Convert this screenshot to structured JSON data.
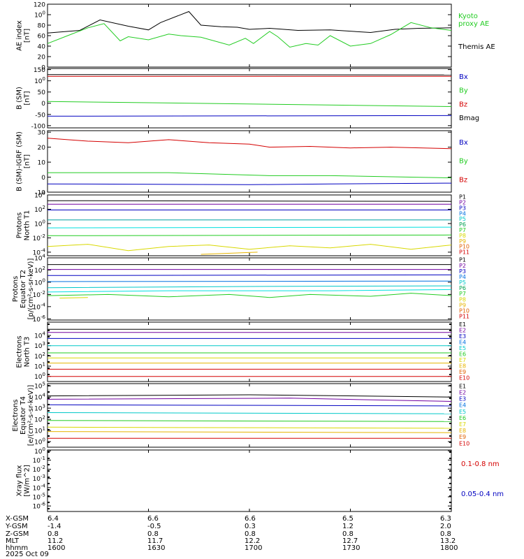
{
  "footer": {
    "rows": [
      {
        "label": "X-GSM",
        "values": [
          "6.4",
          "6.6",
          "6.6",
          "6.5",
          "6.3"
        ]
      },
      {
        "label": "Y-GSM",
        "values": [
          "-1.4",
          "-0.5",
          "0.3",
          "1.2",
          "2.0"
        ]
      },
      {
        "label": "Z-GSM",
        "values": [
          "0.8",
          "0.8",
          "0.8",
          "0.8",
          "0.8"
        ]
      },
      {
        "label": "MLT",
        "values": [
          "11.2",
          "11.7",
          "12.2",
          "12.7",
          "13.2"
        ]
      },
      {
        "label": "hhmm",
        "values": [
          "1600",
          "1630",
          "1700",
          "1730",
          "1800"
        ]
      }
    ],
    "date": "2025 Oct 09"
  },
  "colors": {
    "black": "#000000",
    "red": "#d40000",
    "green": "#22cc22",
    "blue": "#0000c0",
    "yellow": "#d8d800",
    "cyan": "#00c8c8",
    "orange": "#e6b400",
    "purple": "#7000a0"
  },
  "chart_data": [
    {
      "type": "line",
      "id": "ae",
      "ylabel": [
        "AE index",
        "[nT]"
      ],
      "ylim": [
        0,
        120
      ],
      "yticks": [
        "0",
        "20",
        "40",
        "60",
        "80",
        "100",
        "120"
      ],
      "legend": [
        {
          "text": "Kyoto",
          "color": "#22cc22"
        },
        {
          "text": "proxy AE",
          "color": "#22cc22"
        },
        {
          "text": "Themis AE",
          "color": "#000000"
        }
      ],
      "series": [
        {
          "name": "Themis AE",
          "color": "#000000",
          "t": [
            0,
            0.08,
            0.13,
            0.2,
            0.25,
            0.28,
            0.35,
            0.38,
            0.43,
            0.47,
            0.5,
            0.55,
            0.62,
            0.7,
            0.8,
            0.86,
            0.92,
            1
          ],
          "values": [
            65,
            70,
            90,
            78,
            71,
            85,
            106,
            80,
            77,
            76,
            72,
            74,
            70,
            71,
            66,
            72,
            74,
            75
          ]
        },
        {
          "name": "Kyoto proxy AE",
          "color": "#22cc22",
          "t": [
            0,
            0.05,
            0.1,
            0.14,
            0.18,
            0.2,
            0.25,
            0.3,
            0.33,
            0.38,
            0.45,
            0.49,
            0.51,
            0.55,
            0.57,
            0.6,
            0.64,
            0.67,
            0.7,
            0.75,
            0.8,
            0.85,
            0.9,
            0.95,
            1
          ],
          "values": [
            45,
            60,
            75,
            83,
            50,
            58,
            52,
            63,
            60,
            57,
            42,
            55,
            45,
            68,
            58,
            38,
            45,
            42,
            60,
            40,
            45,
            62,
            85,
            75,
            70
          ]
        }
      ]
    },
    {
      "type": "line",
      "id": "bsm",
      "ylabel": [
        "B (SM)",
        "[nT]"
      ],
      "ylim": [
        -110,
        155
      ],
      "yticks": [
        "-100",
        "-50",
        "0",
        "50",
        "100",
        "150"
      ],
      "ytickvals": [
        -100,
        -50,
        0,
        50,
        100,
        150
      ],
      "legend": [
        {
          "text": "Bx",
          "color": "#0000c0"
        },
        {
          "text": "By",
          "color": "#22cc22"
        },
        {
          "text": "Bz",
          "color": "#d40000"
        },
        {
          "text": "Bmag",
          "color": "#000000"
        }
      ],
      "series": [
        {
          "name": "Bmag",
          "color": "#000000",
          "t": [
            0,
            1
          ],
          "values": [
            128,
            126
          ]
        },
        {
          "name": "Bz",
          "color": "#d40000",
          "t": [
            0,
            1
          ],
          "values": [
            120,
            120
          ]
        },
        {
          "name": "By",
          "color": "#22cc22",
          "t": [
            0,
            1
          ],
          "values": [
            8,
            -15
          ]
        },
        {
          "name": "Bx",
          "color": "#0000c0",
          "t": [
            0,
            1
          ],
          "values": [
            -58,
            -55
          ]
        }
      ]
    },
    {
      "type": "line",
      "id": "bigrf",
      "ylabel": [
        "B (SM)-IGRF (SM)",
        "[nT]"
      ],
      "ylim": [
        -10,
        31
      ],
      "yticks": [
        "-10",
        "0",
        "10",
        "20",
        "30"
      ],
      "ytickvals": [
        -10,
        0,
        10,
        20,
        30
      ],
      "legend": [
        {
          "text": "Bx",
          "color": "#0000c0"
        },
        {
          "text": "By",
          "color": "#22cc22"
        },
        {
          "text": "Bz",
          "color": "#d40000"
        }
      ],
      "series": [
        {
          "name": "Bz",
          "color": "#d40000",
          "t": [
            0,
            0.1,
            0.2,
            0.3,
            0.4,
            0.5,
            0.55,
            0.65,
            0.75,
            0.85,
            1
          ],
          "values": [
            26,
            24,
            23,
            25,
            23,
            22,
            20,
            20.5,
            19.5,
            20,
            19
          ]
        },
        {
          "name": "By",
          "color": "#22cc22",
          "t": [
            0,
            0.3,
            0.55,
            0.7,
            0.9,
            1
          ],
          "values": [
            3,
            3,
            1,
            1,
            0,
            -0.5
          ]
        },
        {
          "name": "Bx",
          "color": "#0000c0",
          "t": [
            0,
            0.5,
            0.7,
            1
          ],
          "values": [
            -4.5,
            -5,
            -4.5,
            -4
          ]
        }
      ]
    },
    {
      "type": "line",
      "id": "protons-t1",
      "scale": "log",
      "ylabel": [
        "Protons",
        "North T1"
      ],
      "ylim": [
        -4.5,
        4
      ],
      "yticks": [
        "10-4",
        "10-2",
        "100",
        "102",
        "104"
      ],
      "ytickvals": [
        -4,
        -2,
        0,
        2,
        4
      ],
      "legend": [
        {
          "text": "P1",
          "color": "#000000"
        },
        {
          "text": "P2",
          "color": "#7000a0"
        },
        {
          "text": "P3",
          "color": "#0000c0"
        },
        {
          "text": "P4",
          "color": "#0070e0"
        },
        {
          "text": "P5",
          "color": "#00c8c8"
        },
        {
          "text": "P6",
          "color": "#00a050"
        },
        {
          "text": "P7",
          "color": "#22cc22"
        },
        {
          "text": "P8",
          "color": "#d8d800"
        },
        {
          "text": "P9",
          "color": "#e6b400"
        },
        {
          "text": "P10",
          "color": "#e06000"
        },
        {
          "text": "P11",
          "color": "#d40000"
        }
      ],
      "series": [
        {
          "name": "P1",
          "color": "#000000",
          "t": [
            0,
            1
          ],
          "values": [
            3.2,
            3.1
          ]
        },
        {
          "name": "P2",
          "color": "#7000a0",
          "t": [
            0,
            1
          ],
          "values": [
            2.7,
            2.7
          ]
        },
        {
          "name": "P3",
          "color": "#0000c0",
          "t": [
            0,
            1
          ],
          "values": [
            1.9,
            1.9
          ]
        },
        {
          "name": "P5",
          "color": "#00a0a0",
          "t": [
            0,
            1
          ],
          "values": [
            0.5,
            0.5
          ]
        },
        {
          "name": "P6",
          "color": "#00e0e0",
          "t": [
            0,
            1
          ],
          "values": [
            -0.6,
            -0.5
          ]
        },
        {
          "name": "P7",
          "color": "#22cc22",
          "t": [
            0,
            1
          ],
          "values": [
            -1.7,
            -1.6
          ]
        },
        {
          "name": "P8",
          "color": "#d8d800",
          "t": [
            0,
            0.1,
            0.2,
            0.3,
            0.4,
            0.5,
            0.6,
            0.7,
            0.8,
            0.9,
            1
          ],
          "values": [
            -3.2,
            -2.9,
            -3.8,
            -3.2,
            -3.0,
            -3.6,
            -3.1,
            -3.4,
            -2.9,
            -3.6,
            -3.0
          ]
        },
        {
          "name": "P9",
          "color": "#e6b400",
          "t": [
            0.38,
            0.52
          ],
          "values": [
            -4.3,
            -4.0
          ]
        }
      ]
    },
    {
      "type": "line",
      "id": "protons-t2",
      "scale": "log",
      "ylabel": [
        "Protons",
        "Equator T2",
        "[p/(cm²-s-sr-keV)]"
      ],
      "ylim": [
        -6.2,
        4
      ],
      "yticks": [
        "10-6",
        "10-4",
        "10-2",
        "100",
        "102",
        "104"
      ],
      "ytickvals": [
        -6,
        -4,
        -2,
        0,
        2,
        4
      ],
      "legend": [
        {
          "text": "P1",
          "color": "#000000"
        },
        {
          "text": "P2",
          "color": "#7000a0"
        },
        {
          "text": "P3",
          "color": "#0000c0"
        },
        {
          "text": "P4",
          "color": "#0070e0"
        },
        {
          "text": "P5",
          "color": "#00c8c8"
        },
        {
          "text": "P6",
          "color": "#00a050"
        },
        {
          "text": "P7",
          "color": "#22cc22"
        },
        {
          "text": "P8",
          "color": "#d8d800"
        },
        {
          "text": "P9",
          "color": "#e6b400"
        },
        {
          "text": "P10",
          "color": "#e06000"
        },
        {
          "text": "P11",
          "color": "#d40000"
        }
      ],
      "series": [
        {
          "name": "P1",
          "color": "#000000",
          "t": [
            0,
            1
          ],
          "values": [
            2.9,
            2.9
          ]
        },
        {
          "name": "P2",
          "color": "#7000a0",
          "t": [
            0,
            1
          ],
          "values": [
            2.1,
            2.1
          ]
        },
        {
          "name": "P3",
          "color": "#0000c0",
          "t": [
            0,
            1
          ],
          "values": [
            1.1,
            1.2
          ]
        },
        {
          "name": "P4",
          "color": "#0070e0",
          "t": [
            0,
            1
          ],
          "values": [
            0.1,
            0.2
          ]
        },
        {
          "name": "P5",
          "color": "#00c8c8",
          "t": [
            0,
            0.5,
            1
          ],
          "values": [
            -0.9,
            -0.7,
            -0.6
          ]
        },
        {
          "name": "P6",
          "color": "#00e0e0",
          "t": [
            0,
            0.3,
            0.7,
            1
          ],
          "values": [
            -1.6,
            -1.4,
            -1.4,
            -1.2
          ]
        },
        {
          "name": "P7",
          "color": "#22cc22",
          "t": [
            0,
            0.15,
            0.3,
            0.45,
            0.55,
            0.65,
            0.8,
            0.9,
            1
          ],
          "values": [
            -2.2,
            -2.0,
            -2.4,
            -2.0,
            -2.5,
            -2.0,
            -2.3,
            -1.8,
            -2.2
          ]
        },
        {
          "name": "P8",
          "color": "#d8d800",
          "t": [
            0.03,
            0.1
          ],
          "values": [
            -2.6,
            -2.5
          ]
        }
      ]
    },
    {
      "type": "line",
      "id": "electrons-t3",
      "scale": "log",
      "ylabel": [
        "Electrons",
        "North T3"
      ],
      "ylim": [
        -0.5,
        5.3
      ],
      "yticks": [
        "100",
        "101",
        "102",
        "103",
        "104"
      ],
      "ytickvals": [
        0,
        1,
        2,
        3,
        4
      ],
      "legend": [
        {
          "text": "E1",
          "color": "#000000"
        },
        {
          "text": "E2",
          "color": "#7000a0"
        },
        {
          "text": "E3",
          "color": "#0000c0"
        },
        {
          "text": "E4",
          "color": "#0070e0"
        },
        {
          "text": "E5",
          "color": "#00c8c8"
        },
        {
          "text": "E6",
          "color": "#22cc22"
        },
        {
          "text": "E7",
          "color": "#d8d800"
        },
        {
          "text": "E8",
          "color": "#e6b400"
        },
        {
          "text": "E9",
          "color": "#e06000"
        },
        {
          "text": "E10",
          "color": "#d40000"
        }
      ],
      "series": [
        {
          "name": "E1",
          "color": "#000000",
          "t": [
            0,
            1
          ],
          "values": [
            4.6,
            4.6
          ]
        },
        {
          "name": "E2",
          "color": "#7000a0",
          "t": [
            0,
            1
          ],
          "values": [
            4.3,
            4.3
          ]
        },
        {
          "name": "E3",
          "color": "#0000c0",
          "t": [
            0,
            1
          ],
          "values": [
            3.7,
            3.7
          ]
        },
        {
          "name": "E4",
          "color": "#00c8c8",
          "t": [
            0,
            1
          ],
          "values": [
            3.0,
            3.0
          ]
        },
        {
          "name": "E5",
          "color": "#22cc22",
          "t": [
            0,
            1
          ],
          "values": [
            2.3,
            2.3
          ]
        },
        {
          "name": "E6",
          "color": "#d8d800",
          "t": [
            0,
            1
          ],
          "values": [
            1.8,
            1.8
          ]
        },
        {
          "name": "E7",
          "color": "#e6b400",
          "t": [
            0,
            1
          ],
          "values": [
            1.3,
            1.3
          ]
        },
        {
          "name": "E8",
          "color": "#d40000",
          "t": [
            0,
            1
          ],
          "values": [
            0.7,
            0.7
          ]
        },
        {
          "name": "E9",
          "color": "#d40000",
          "t": [
            0,
            1
          ],
          "values": [
            0.0,
            0.0
          ]
        }
      ]
    },
    {
      "type": "line",
      "id": "electrons-t4",
      "scale": "log",
      "ylabel": [
        "Electrons",
        "Equator T4",
        "[e/(cm²-s-sr-keV)]"
      ],
      "ylim": [
        -0.5,
        5.2
      ],
      "yticks": [
        "100",
        "101",
        "102",
        "103",
        "104",
        "105"
      ],
      "ytickvals": [
        0,
        1,
        2,
        3,
        4,
        5
      ],
      "legend": [
        {
          "text": "E1",
          "color": "#000000"
        },
        {
          "text": "E2",
          "color": "#7000a0"
        },
        {
          "text": "E3",
          "color": "#0000c0"
        },
        {
          "text": "E4",
          "color": "#0070e0"
        },
        {
          "text": "E5",
          "color": "#00c8c8"
        },
        {
          "text": "E6",
          "color": "#22cc22"
        },
        {
          "text": "E7",
          "color": "#d8d800"
        },
        {
          "text": "E8",
          "color": "#e6b400"
        },
        {
          "text": "E9",
          "color": "#e06000"
        },
        {
          "text": "E10",
          "color": "#d40000"
        }
      ],
      "series": [
        {
          "name": "E1",
          "color": "#000000",
          "t": [
            0,
            0.5,
            1
          ],
          "values": [
            4.1,
            4.2,
            4.0
          ]
        },
        {
          "name": "E2",
          "color": "#7000a0",
          "t": [
            0,
            0.6,
            1
          ],
          "values": [
            3.8,
            3.9,
            3.6
          ]
        },
        {
          "name": "E3",
          "color": "#0000c0",
          "t": [
            0,
            1
          ],
          "values": [
            3.3,
            3.2
          ]
        },
        {
          "name": "E4",
          "color": "#00c8c8",
          "t": [
            0,
            1
          ],
          "values": [
            2.6,
            2.5
          ]
        },
        {
          "name": "E5",
          "color": "#22cc22",
          "t": [
            0,
            1
          ],
          "values": [
            1.9,
            1.8
          ]
        },
        {
          "name": "E6",
          "color": "#d8d800",
          "t": [
            0,
            1
          ],
          "values": [
            1.3,
            1.2
          ]
        },
        {
          "name": "E7",
          "color": "#e6b400",
          "t": [
            0,
            1
          ],
          "values": [
            0.9,
            0.8
          ]
        },
        {
          "name": "E8",
          "color": "#d40000",
          "t": [
            0,
            1
          ],
          "values": [
            0.3,
            0.3
          ]
        }
      ]
    },
    {
      "type": "line",
      "id": "xray",
      "scale": "log",
      "ylabel": [
        "Xray flux",
        "[W/m^2]"
      ],
      "ylim": [
        -6.6,
        0.1
      ],
      "yticks": [
        "10-6",
        "10-5",
        "10-4",
        "10-3",
        "10-2",
        "10-1",
        "100"
      ],
      "ytickvals": [
        -6,
        -5,
        -4,
        -3,
        -2,
        -1,
        0
      ],
      "legend": [
        {
          "text": "0.1-0.8 nm",
          "color": "#d40000"
        },
        {
          "text": "0.05-0.4 nm",
          "color": "#0000c0"
        }
      ],
      "series": []
    }
  ]
}
